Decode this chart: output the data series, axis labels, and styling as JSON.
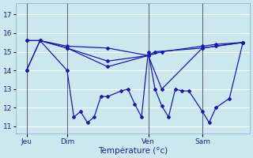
{
  "background_color": "#cce8ee",
  "grid_color": "#ffffff",
  "line_color": "#1a1aaa",
  "xlabel": "Température (°c)",
  "yticks": [
    11,
    12,
    13,
    14,
    15,
    16,
    17
  ],
  "ylim": [
    10.6,
    17.6
  ],
  "xlim": [
    -0.3,
    17.0
  ],
  "day_labels": [
    "Jeu",
    "Dim",
    "Ven",
    "Sam"
  ],
  "day_positions": [
    0.5,
    3.5,
    9.5,
    13.5
  ],
  "vline_positions": [
    0.5,
    3.5,
    9.5,
    13.5
  ],
  "series": [
    {
      "x": [
        0.5,
        1.5,
        3.5,
        6.5,
        9.5,
        10.0,
        13.5,
        14.5,
        16.5
      ],
      "y": [
        15.6,
        15.6,
        15.3,
        15.2,
        14.8,
        15.0,
        15.2,
        15.3,
        15.5
      ]
    },
    {
      "x": [
        0.5,
        1.5,
        3.5,
        6.5,
        9.5,
        10.5,
        13.5,
        14.5,
        16.5
      ],
      "y": [
        15.6,
        15.6,
        15.2,
        14.5,
        14.8,
        15.0,
        15.3,
        15.4,
        15.5
      ]
    },
    {
      "x": [
        0.5,
        1.5,
        3.5,
        6.5,
        9.5,
        10.5,
        13.5,
        16.5
      ],
      "y": [
        14.0,
        15.6,
        15.2,
        14.2,
        14.8,
        13.0,
        15.2,
        15.5
      ]
    },
    {
      "x": [
        0.5,
        1.5,
        3.5,
        4.0,
        4.5,
        5.0,
        5.5,
        6.0,
        6.5,
        7.5,
        8.0,
        8.5,
        9.0,
        9.5,
        10.0,
        10.5,
        11.0,
        11.5,
        12.0,
        12.5,
        13.5,
        14.0,
        14.5,
        15.5,
        16.5
      ],
      "y": [
        14.0,
        15.6,
        14.0,
        11.5,
        11.8,
        11.2,
        11.5,
        12.6,
        12.6,
        12.9,
        13.0,
        12.2,
        11.5,
        15.0,
        13.0,
        12.1,
        11.5,
        13.0,
        12.9,
        12.9,
        11.8,
        11.2,
        12.0,
        12.5,
        15.5
      ]
    }
  ]
}
